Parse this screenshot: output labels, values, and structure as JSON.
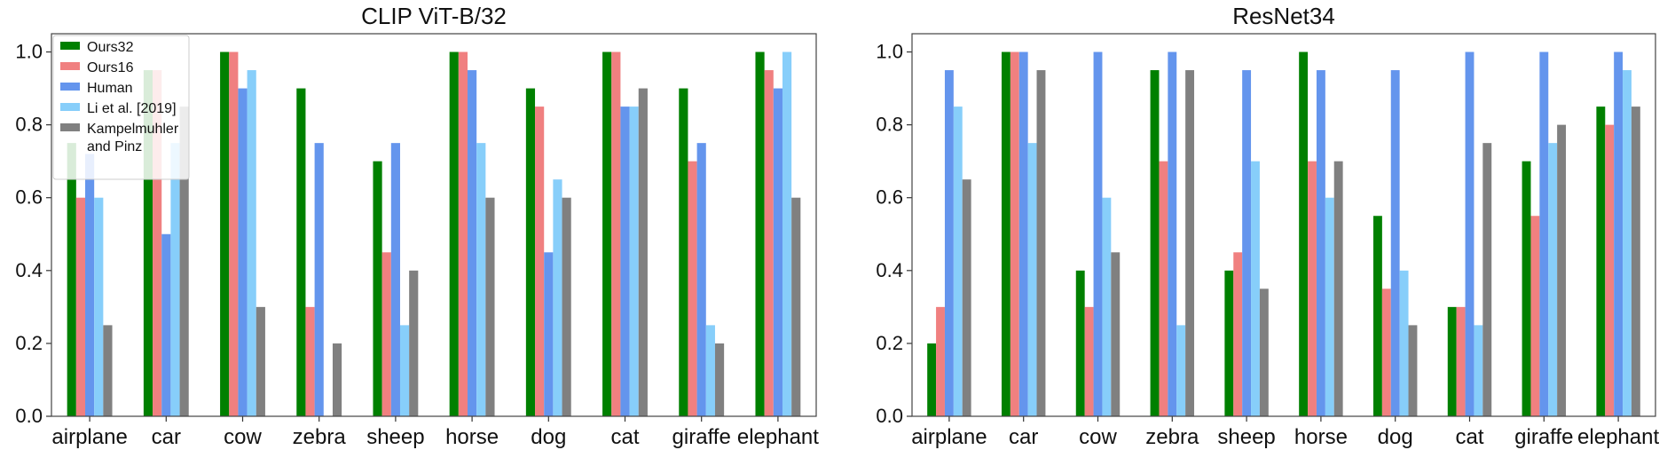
{
  "colors": {
    "Ours32": "#008000",
    "Ours16": "#f08080",
    "Human": "#6495ed",
    "Li et al. [2019]": "#87cefa",
    "Kampelmuhler and Pinz": "#808080"
  },
  "chart_data": [
    {
      "type": "bar",
      "title": "CLIP ViT-B/32",
      "categories": [
        "airplane",
        "car",
        "cow",
        "zebra",
        "sheep",
        "horse",
        "dog",
        "cat",
        "giraffe",
        "elephant"
      ],
      "ylim": [
        0,
        1.05
      ],
      "yticks": [
        "0.0",
        "0.2",
        "0.4",
        "0.6",
        "0.8",
        "1.0"
      ],
      "legend": {
        "placement": "top-left",
        "entries": [
          "Ours32",
          "Ours16",
          "Human",
          "Li et al. [2019]",
          "Kampelmuhler and Pinz"
        ]
      },
      "series": [
        {
          "name": "Ours32",
          "values": [
            0.75,
            0.95,
            1.0,
            0.9,
            0.7,
            1.0,
            0.9,
            1.0,
            0.9,
            1.0
          ]
        },
        {
          "name": "Ours16",
          "values": [
            0.6,
            0.95,
            1.0,
            0.3,
            0.45,
            1.0,
            0.85,
            1.0,
            0.7,
            0.95
          ]
        },
        {
          "name": "Human",
          "values": [
            0.72,
            0.5,
            0.9,
            0.75,
            0.75,
            0.95,
            0.45,
            0.85,
            0.75,
            0.9
          ]
        },
        {
          "name": "Li et al. [2019]",
          "values": [
            0.6,
            0.75,
            0.95,
            0.0,
            0.25,
            0.75,
            0.65,
            0.85,
            0.25,
            1.0
          ]
        },
        {
          "name": "Kampelmuhler and Pinz",
          "values": [
            0.25,
            0.85,
            0.3,
            0.2,
            0.4,
            0.6,
            0.6,
            0.9,
            0.2,
            0.6
          ]
        }
      ]
    },
    {
      "type": "bar",
      "title": "ResNet34",
      "categories": [
        "airplane",
        "car",
        "cow",
        "zebra",
        "sheep",
        "horse",
        "dog",
        "cat",
        "giraffe",
        "elephant"
      ],
      "ylim": [
        0,
        1.05
      ],
      "yticks": [
        "0.0",
        "0.2",
        "0.4",
        "0.6",
        "0.8",
        "1.0"
      ],
      "series": [
        {
          "name": "Ours32",
          "values": [
            0.2,
            1.0,
            0.4,
            0.95,
            0.4,
            1.0,
            0.55,
            0.3,
            0.7,
            0.85
          ]
        },
        {
          "name": "Ours16",
          "values": [
            0.3,
            1.0,
            0.3,
            0.7,
            0.45,
            0.7,
            0.35,
            0.3,
            0.55,
            0.8
          ]
        },
        {
          "name": "Human",
          "values": [
            0.95,
            1.0,
            1.0,
            1.0,
            0.95,
            0.95,
            0.95,
            1.0,
            1.0,
            1.0
          ]
        },
        {
          "name": "Li et al. [2019]",
          "values": [
            0.85,
            0.75,
            0.6,
            0.25,
            0.7,
            0.6,
            0.4,
            0.25,
            0.75,
            0.95
          ]
        },
        {
          "name": "Kampelmuhler and Pinz",
          "values": [
            0.65,
            0.95,
            0.45,
            0.95,
            0.35,
            0.7,
            0.25,
            0.75,
            0.8,
            0.85
          ]
        }
      ]
    }
  ]
}
